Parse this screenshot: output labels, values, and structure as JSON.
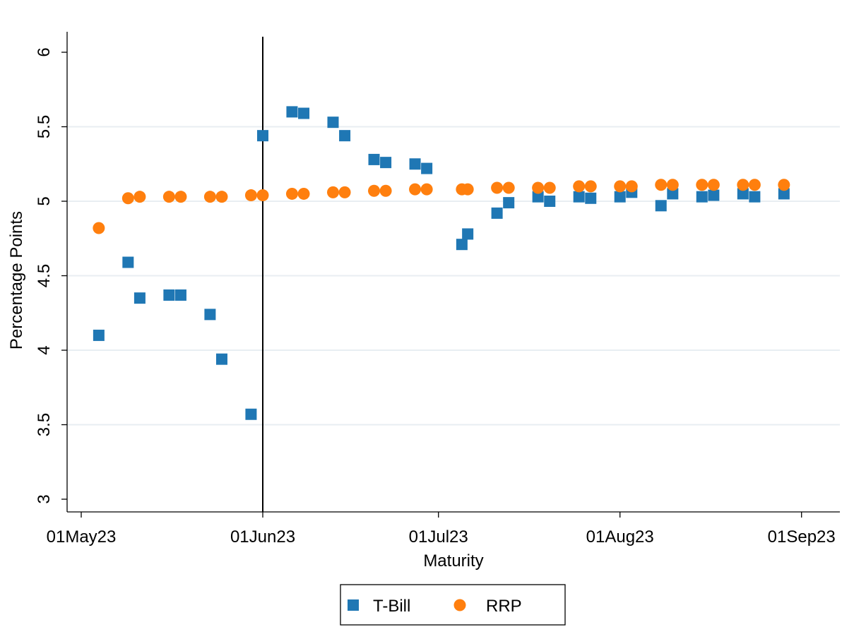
{
  "chart_data": {
    "type": "scatter",
    "xlabel": "Maturity",
    "ylabel": "Percentage Points",
    "x_ticks": [
      "01May23",
      "01Jun23",
      "01Jul23",
      "01Aug23",
      "01Sep23"
    ],
    "y_ticks": [
      "3",
      "3.5",
      "4",
      "4.5",
      "5",
      "5.5",
      "6"
    ],
    "ylim": [
      3,
      6
    ],
    "xlim": [
      "2023-04-29",
      "2023-09-01"
    ],
    "grid": "horizontal",
    "reference_line_x": "2023-06-01",
    "legend_position": "bottom-center",
    "series": [
      {
        "name": "T-Bill",
        "marker": "square",
        "color": "#1f77b4",
        "points": [
          {
            "x": "2023-05-04",
            "y": 4.1
          },
          {
            "x": "2023-05-09",
            "y": 4.59
          },
          {
            "x": "2023-05-11",
            "y": 4.35
          },
          {
            "x": "2023-05-16",
            "y": 4.37
          },
          {
            "x": "2023-05-18",
            "y": 4.37
          },
          {
            "x": "2023-05-23",
            "y": 4.24
          },
          {
            "x": "2023-05-25",
            "y": 3.94
          },
          {
            "x": "2023-05-30",
            "y": 3.57
          },
          {
            "x": "2023-06-01",
            "y": 5.44
          },
          {
            "x": "2023-06-06",
            "y": 5.6
          },
          {
            "x": "2023-06-08",
            "y": 5.59
          },
          {
            "x": "2023-06-13",
            "y": 5.53
          },
          {
            "x": "2023-06-15",
            "y": 5.44
          },
          {
            "x": "2023-06-20",
            "y": 5.28
          },
          {
            "x": "2023-06-22",
            "y": 5.26
          },
          {
            "x": "2023-06-27",
            "y": 5.25
          },
          {
            "x": "2023-06-29",
            "y": 5.22
          },
          {
            "x": "2023-07-05",
            "y": 4.71
          },
          {
            "x": "2023-07-06",
            "y": 4.78
          },
          {
            "x": "2023-07-11",
            "y": 4.92
          },
          {
            "x": "2023-07-13",
            "y": 4.99
          },
          {
            "x": "2023-07-18",
            "y": 5.03
          },
          {
            "x": "2023-07-20",
            "y": 5.0
          },
          {
            "x": "2023-07-25",
            "y": 5.03
          },
          {
            "x": "2023-07-27",
            "y": 5.02
          },
          {
            "x": "2023-08-01",
            "y": 5.03
          },
          {
            "x": "2023-08-03",
            "y": 5.06
          },
          {
            "x": "2023-08-08",
            "y": 4.97
          },
          {
            "x": "2023-08-10",
            "y": 5.05
          },
          {
            "x": "2023-08-15",
            "y": 5.03
          },
          {
            "x": "2023-08-17",
            "y": 5.04
          },
          {
            "x": "2023-08-22",
            "y": 5.05
          },
          {
            "x": "2023-08-24",
            "y": 5.03
          },
          {
            "x": "2023-08-29",
            "y": 5.05
          }
        ]
      },
      {
        "name": "RRP",
        "marker": "circle",
        "color": "#ff7f0e",
        "points": [
          {
            "x": "2023-05-04",
            "y": 4.82
          },
          {
            "x": "2023-05-09",
            "y": 5.02
          },
          {
            "x": "2023-05-11",
            "y": 5.03
          },
          {
            "x": "2023-05-16",
            "y": 5.03
          },
          {
            "x": "2023-05-18",
            "y": 5.03
          },
          {
            "x": "2023-05-23",
            "y": 5.03
          },
          {
            "x": "2023-05-25",
            "y": 5.03
          },
          {
            "x": "2023-05-30",
            "y": 5.04
          },
          {
            "x": "2023-06-01",
            "y": 5.04
          },
          {
            "x": "2023-06-06",
            "y": 5.05
          },
          {
            "x": "2023-06-08",
            "y": 5.05
          },
          {
            "x": "2023-06-13",
            "y": 5.06
          },
          {
            "x": "2023-06-15",
            "y": 5.06
          },
          {
            "x": "2023-06-20",
            "y": 5.07
          },
          {
            "x": "2023-06-22",
            "y": 5.07
          },
          {
            "x": "2023-06-27",
            "y": 5.08
          },
          {
            "x": "2023-06-29",
            "y": 5.08
          },
          {
            "x": "2023-07-05",
            "y": 5.08
          },
          {
            "x": "2023-07-06",
            "y": 5.08
          },
          {
            "x": "2023-07-11",
            "y": 5.09
          },
          {
            "x": "2023-07-13",
            "y": 5.09
          },
          {
            "x": "2023-07-18",
            "y": 5.09
          },
          {
            "x": "2023-07-20",
            "y": 5.09
          },
          {
            "x": "2023-07-25",
            "y": 5.1
          },
          {
            "x": "2023-07-27",
            "y": 5.1
          },
          {
            "x": "2023-08-01",
            "y": 5.1
          },
          {
            "x": "2023-08-03",
            "y": 5.1
          },
          {
            "x": "2023-08-08",
            "y": 5.11
          },
          {
            "x": "2023-08-10",
            "y": 5.11
          },
          {
            "x": "2023-08-15",
            "y": 5.11
          },
          {
            "x": "2023-08-17",
            "y": 5.11
          },
          {
            "x": "2023-08-22",
            "y": 5.11
          },
          {
            "x": "2023-08-24",
            "y": 5.11
          },
          {
            "x": "2023-08-29",
            "y": 5.11
          }
        ]
      }
    ]
  }
}
